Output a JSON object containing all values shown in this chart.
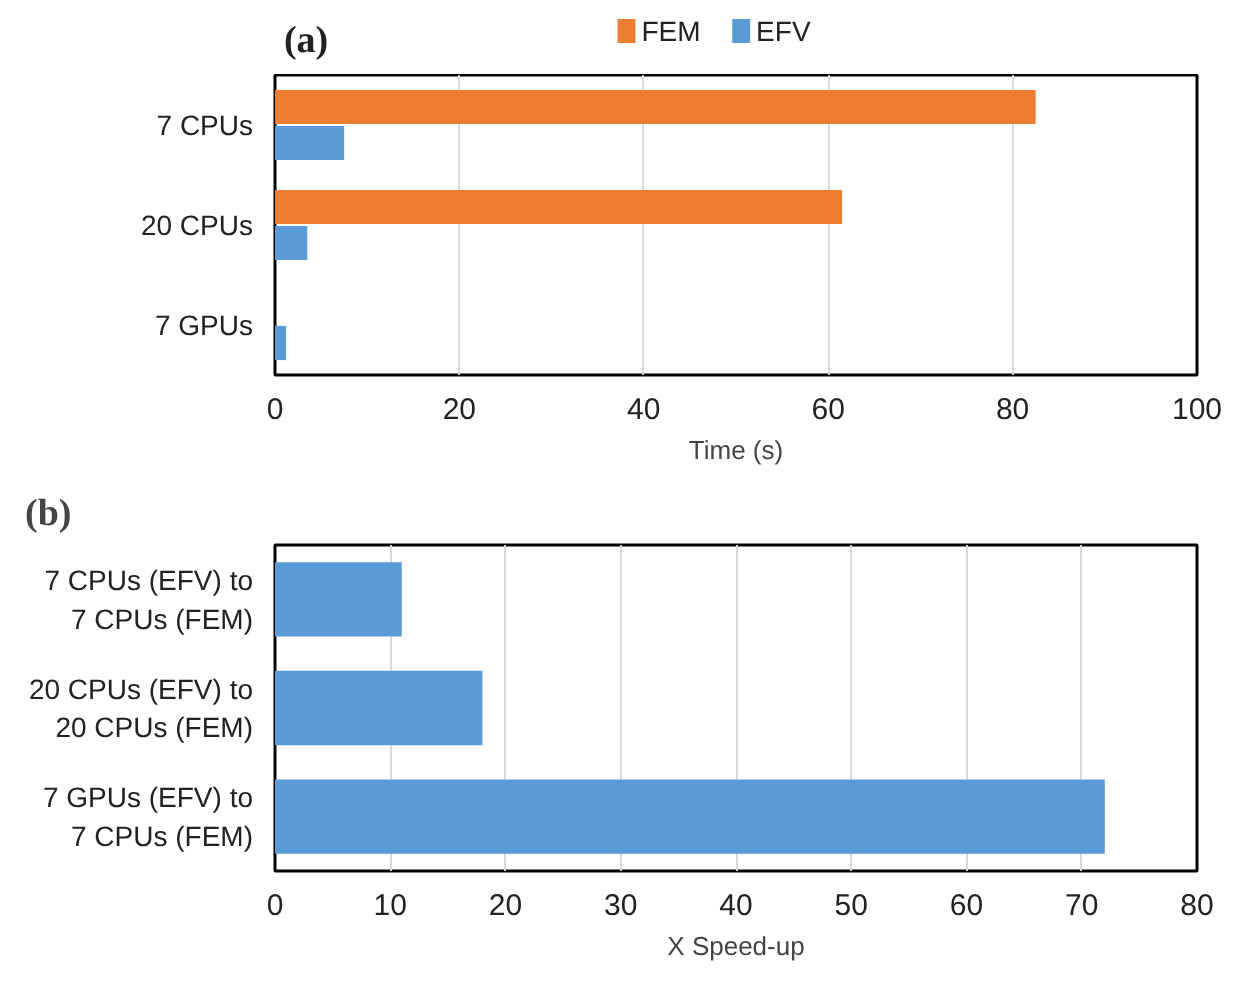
{
  "chart_data": [
    {
      "type": "bar",
      "orientation": "horizontal",
      "title": "(a)",
      "xlabel": "Time (s)",
      "categories": [
        "7 CPUs",
        "20 CPUs",
        "7 GPUs"
      ],
      "series": [
        {
          "name": "FEM",
          "color": "#ed7d31",
          "values": [
            82.5,
            61.5,
            null
          ]
        },
        {
          "name": "EFV",
          "color": "#5b9bd5",
          "values": [
            7.5,
            3.5,
            1.2
          ]
        }
      ],
      "xlim": [
        0,
        100
      ],
      "xticks": [
        0,
        20,
        40,
        60,
        80,
        100
      ],
      "grid": "x",
      "legend": "top"
    },
    {
      "type": "bar",
      "orientation": "horizontal",
      "title": "(b)",
      "xlabel": "X Speed-up",
      "categories": [
        "7 CPUs (EFV) to\n7 CPUs (FEM)",
        "20 CPUs (EFV) to\n20 CPUs (FEM)",
        "7 GPUs (EFV) to\n7 CPUs (FEM)"
      ],
      "series": [
        {
          "color": "#5b9bd5",
          "values": [
            11,
            18,
            72
          ]
        }
      ],
      "xlim": [
        0,
        80
      ],
      "xticks": [
        0,
        10,
        20,
        30,
        40,
        50,
        60,
        70,
        80
      ],
      "grid": "x"
    }
  ]
}
